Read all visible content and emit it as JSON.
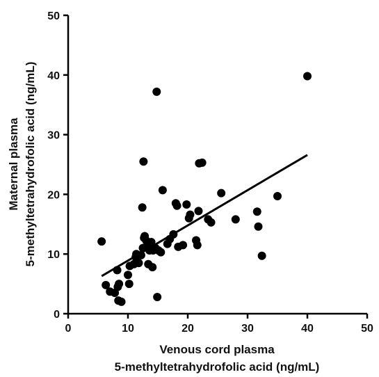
{
  "chart_data": {
    "type": "scatter",
    "title": "",
    "xlabel": [
      "Venous cord plasma",
      "5-methyltetrahydrofolic acid (ng/mL)"
    ],
    "ylabel": [
      "Maternal plasma",
      "5-methyltetrahydrofolic acid (ng/mL)"
    ],
    "xlim": [
      0,
      50
    ],
    "ylim": [
      0,
      50
    ],
    "x_ticks": [
      "0",
      "10",
      "20",
      "30",
      "40",
      "50"
    ],
    "y_ticks": [
      "0",
      "10",
      "20",
      "30",
      "40",
      "50"
    ],
    "grid": false,
    "legend": "none",
    "colors": {
      "points": "#000000",
      "line": "#000000",
      "axes": "#000000"
    },
    "series": [
      {
        "points": [
          [
            5.6,
            12.1
          ],
          [
            6.3,
            4.8
          ],
          [
            7.0,
            3.7
          ],
          [
            7.8,
            3.5
          ],
          [
            8.3,
            4.5
          ],
          [
            8.2,
            7.3
          ],
          [
            8.5,
            5.0
          ],
          [
            8.4,
            2.2
          ],
          [
            8.9,
            2.0
          ],
          [
            10.0,
            6.5
          ],
          [
            10.3,
            8.0
          ],
          [
            10.2,
            5.0
          ],
          [
            11.0,
            8.3
          ],
          [
            11.3,
            9.5
          ],
          [
            11.4,
            10.0
          ],
          [
            11.8,
            8.5
          ],
          [
            12.2,
            9.8
          ],
          [
            12.4,
            17.8
          ],
          [
            12.6,
            25.5
          ],
          [
            12.5,
            11.0
          ],
          [
            12.7,
            12.7
          ],
          [
            12.8,
            13.0
          ],
          [
            13.1,
            12.2
          ],
          [
            13.3,
            11.5
          ],
          [
            13.4,
            8.3
          ],
          [
            13.6,
            10.6
          ],
          [
            13.9,
            12.0
          ],
          [
            14.1,
            7.8
          ],
          [
            14.2,
            10.6
          ],
          [
            14.6,
            11.0
          ],
          [
            14.8,
            37.2
          ],
          [
            14.9,
            2.8
          ],
          [
            15.1,
            10.6
          ],
          [
            15.5,
            10.3
          ],
          [
            15.8,
            20.7
          ],
          [
            16.6,
            11.7
          ],
          [
            17.0,
            12.5
          ],
          [
            17.6,
            13.3
          ],
          [
            18.0,
            18.5
          ],
          [
            18.2,
            18.1
          ],
          [
            18.4,
            11.2
          ],
          [
            19.2,
            11.5
          ],
          [
            19.8,
            18.3
          ],
          [
            20.2,
            16.0
          ],
          [
            20.4,
            16.6
          ],
          [
            21.4,
            12.3
          ],
          [
            21.6,
            11.5
          ],
          [
            21.8,
            17.2
          ],
          [
            21.9,
            25.2
          ],
          [
            22.4,
            25.3
          ],
          [
            23.4,
            15.8
          ],
          [
            23.9,
            15.3
          ],
          [
            25.6,
            20.2
          ],
          [
            28.0,
            15.8
          ],
          [
            31.6,
            17.1
          ],
          [
            31.8,
            14.6
          ],
          [
            32.4,
            9.7
          ],
          [
            35.0,
            19.7
          ],
          [
            40.0,
            39.8
          ]
        ]
      }
    ],
    "trendline": {
      "x": [
        5.6,
        40.0
      ],
      "y": [
        6.3,
        26.6
      ]
    }
  }
}
